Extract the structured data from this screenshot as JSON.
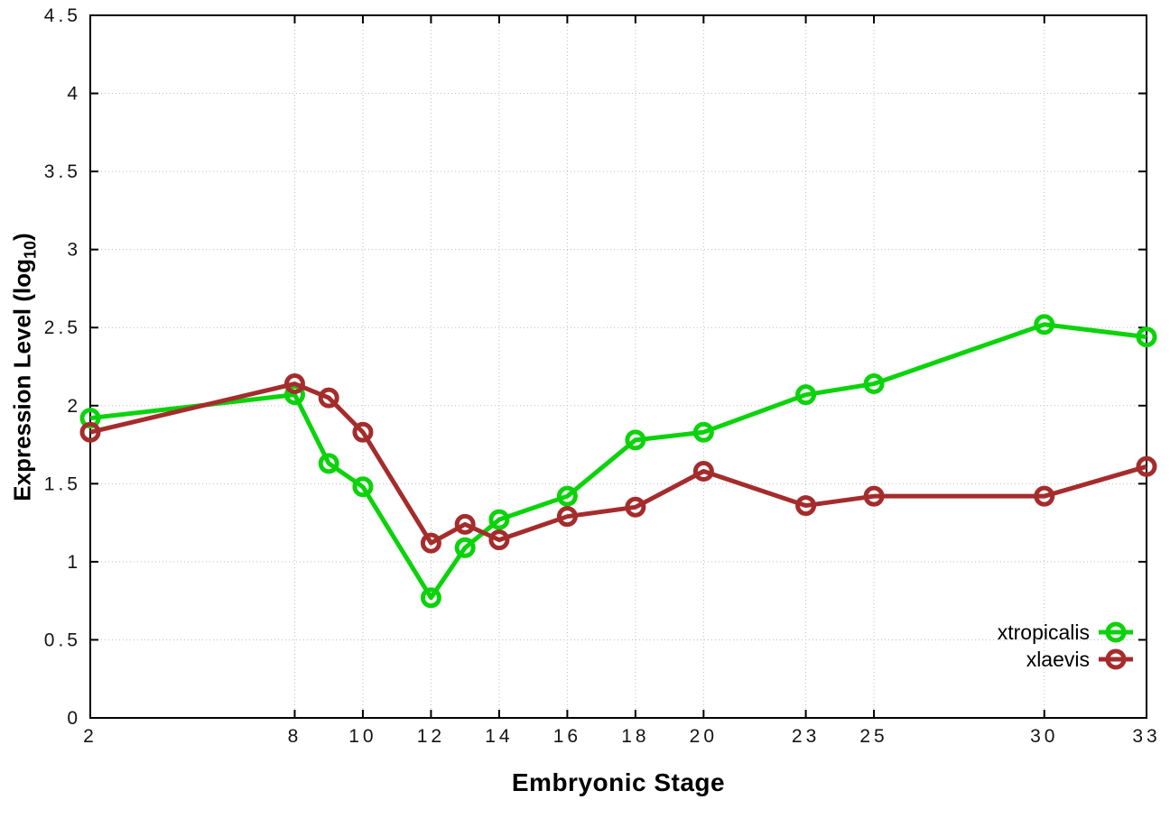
{
  "chart_data": {
    "type": "line",
    "xlabel": "Embryonic Stage",
    "ylabel": "Expression Level (log10)",
    "ylabel_parts": {
      "prefix": "Expression Level (log",
      "sub": "10",
      "suffix": ")"
    },
    "xlim": [
      2,
      33
    ],
    "ylim": [
      0,
      4.5
    ],
    "grid": true,
    "legend_position": "bottom-right",
    "x": [
      2,
      8,
      9,
      10,
      12,
      13,
      14,
      16,
      18,
      20,
      23,
      25,
      30,
      33
    ],
    "xticks": [
      2,
      8,
      10,
      12,
      14,
      16,
      18,
      20,
      23,
      25,
      30,
      33
    ],
    "xtick_labels": [
      "2",
      "8",
      "10",
      "12",
      "14",
      "16",
      "18",
      "20",
      "23",
      "25",
      "30",
      "33"
    ],
    "yticks": [
      0,
      0.5,
      1,
      1.5,
      2,
      2.5,
      3,
      3.5,
      4,
      4.5
    ],
    "ytick_labels": [
      "0",
      "0.5",
      "1",
      "1.5",
      "2",
      "2.5",
      "3",
      "3.5",
      "4",
      "4.5"
    ],
    "series": [
      {
        "name": "xtropicalis",
        "color": "#0bd30b",
        "values": [
          1.92,
          2.07,
          1.63,
          1.48,
          0.77,
          1.09,
          1.27,
          1.42,
          1.78,
          1.83,
          2.07,
          2.14,
          2.52,
          2.44
        ]
      },
      {
        "name": "xlaevis",
        "color": "#a52c2c",
        "values": [
          1.83,
          2.14,
          2.05,
          1.83,
          1.12,
          1.24,
          1.14,
          1.29,
          1.35,
          1.58,
          1.36,
          1.42,
          1.42,
          1.61
        ]
      }
    ]
  }
}
